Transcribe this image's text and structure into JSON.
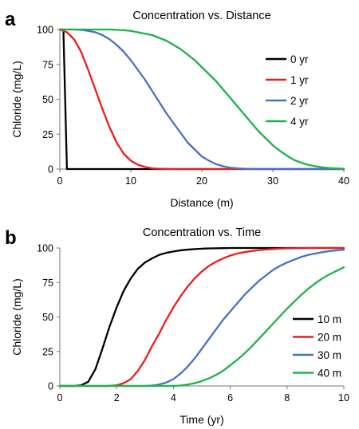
{
  "chart_data": [
    {
      "panel_label": "a",
      "type": "line",
      "title": "Concentration vs. Distance",
      "xlabel": "Distance (m)",
      "ylabel": "Chloride (mg/L)",
      "xlim": [
        0,
        40
      ],
      "ylim": [
        0,
        100
      ],
      "xticks": [
        0,
        10,
        20,
        30,
        40
      ],
      "yticks": [
        0,
        25,
        50,
        75,
        100
      ],
      "grid": false,
      "legend_position": "right",
      "x": [
        0,
        1,
        2,
        3,
        4,
        5,
        6,
        7,
        8,
        9,
        10,
        11,
        12,
        13,
        14,
        15,
        16,
        17,
        18,
        19,
        20,
        21,
        22,
        23,
        24,
        25,
        26,
        27,
        28,
        29,
        30,
        31,
        32,
        33,
        34,
        35,
        36,
        37,
        38,
        39,
        40
      ],
      "series": [
        {
          "name": "0 yr",
          "color": "#000000",
          "x": [
            0,
            0.5,
            1,
            1.2,
            40
          ],
          "values": [
            100,
            100,
            0,
            0,
            0
          ]
        },
        {
          "name": "1 yr",
          "color": "#ee1c1c",
          "values": [
            100,
            98,
            93,
            84,
            71,
            57,
            43,
            30,
            19,
            11,
            6,
            3,
            1.5,
            0.5,
            0.2,
            0.1,
            0,
            0,
            0,
            0,
            0,
            0,
            0,
            0,
            0,
            0,
            0,
            0,
            0,
            0,
            0,
            0,
            0,
            0,
            0,
            0,
            0,
            0,
            0,
            0,
            0
          ]
        },
        {
          "name": "2 yr",
          "color": "#4472c4",
          "values": [
            100,
            100,
            100,
            99.7,
            99,
            98,
            96,
            93,
            89,
            84,
            78,
            71,
            64,
            56,
            48,
            40,
            33,
            26,
            19,
            14,
            9,
            6,
            3.5,
            2,
            1,
            0.5,
            0.2,
            0.1,
            0,
            0,
            0,
            0,
            0,
            0,
            0,
            0,
            0,
            0,
            0,
            0,
            0
          ]
        },
        {
          "name": "4 yr",
          "color": "#1fb24a",
          "values": [
            100,
            100,
            100,
            100,
            100,
            100,
            100,
            100,
            99.8,
            99.5,
            99,
            98,
            97,
            96,
            94,
            92,
            89,
            86,
            82,
            78,
            73,
            68,
            63,
            57,
            51,
            45,
            39,
            33,
            27,
            22,
            17,
            13,
            9.5,
            6.5,
            4.5,
            3,
            2,
            1.2,
            0.7,
            0.4,
            0.2
          ]
        }
      ]
    },
    {
      "panel_label": "b",
      "type": "line",
      "title": "Concentration vs. Time",
      "xlabel": "Time (yr)",
      "ylabel": "Chloride (mg/L)",
      "xlim": [
        0,
        10
      ],
      "ylim": [
        0,
        100
      ],
      "xticks": [
        0,
        2,
        4,
        6,
        8,
        10
      ],
      "yticks": [
        0,
        25,
        50,
        75,
        100
      ],
      "grid": false,
      "legend_position": "bottom-right",
      "x": [
        0,
        0.25,
        0.5,
        0.75,
        1,
        1.25,
        1.5,
        1.75,
        2,
        2.25,
        2.5,
        2.75,
        3,
        3.25,
        3.5,
        3.75,
        4,
        4.25,
        4.5,
        4.75,
        5,
        5.25,
        5.5,
        5.75,
        6,
        6.25,
        6.5,
        6.75,
        7,
        7.25,
        7.5,
        7.75,
        8,
        8.25,
        8.5,
        8.75,
        9,
        9.25,
        9.5,
        9.75,
        10
      ],
      "series": [
        {
          "name": "10 m",
          "color": "#000000",
          "values": [
            0,
            0,
            0,
            0.5,
            3,
            12,
            27,
            43,
            57,
            69,
            78,
            85,
            89.5,
            92.5,
            95,
            96.5,
            97.5,
            98.3,
            98.8,
            99.2,
            99.5,
            99.7,
            99.8,
            99.9,
            100,
            100,
            100,
            100,
            100,
            100,
            100,
            100,
            100,
            100,
            100,
            100,
            100,
            100,
            100,
            100,
            100
          ]
        },
        {
          "name": "20 m",
          "color": "#ee1c1c",
          "values": [
            0,
            0,
            0,
            0,
            0,
            0,
            0,
            0,
            0.5,
            2,
            5,
            11,
            19,
            29,
            38,
            48,
            57,
            65,
            72,
            78,
            83,
            87,
            90,
            92.5,
            94.5,
            96,
            97,
            97.8,
            98.4,
            98.9,
            99.2,
            99.5,
            99.7,
            99.8,
            99.9,
            100,
            100,
            100,
            100,
            100,
            100
          ]
        },
        {
          "name": "30 m",
          "color": "#4472c4",
          "values": [
            0,
            0,
            0,
            0,
            0,
            0,
            0,
            0,
            0,
            0,
            0,
            0,
            0,
            0.3,
            1,
            2.5,
            5,
            9,
            14,
            20,
            27,
            34,
            41,
            48,
            54,
            60,
            66,
            71,
            76,
            80,
            84,
            87,
            89.5,
            91.5,
            93.5,
            95,
            96,
            97,
            97.8,
            98.3,
            98.7
          ]
        },
        {
          "name": "40 m",
          "color": "#1fb24a",
          "values": [
            0,
            0,
            0,
            0,
            0,
            0,
            0,
            0,
            0,
            0,
            0,
            0,
            0,
            0,
            0,
            0,
            0,
            0.3,
            1,
            2,
            3.5,
            5.5,
            8,
            11,
            15,
            19,
            23.5,
            28.5,
            34,
            39.5,
            45,
            50.5,
            56,
            61,
            66,
            70.5,
            74.5,
            78,
            81,
            83.5,
            86
          ]
        }
      ]
    }
  ]
}
